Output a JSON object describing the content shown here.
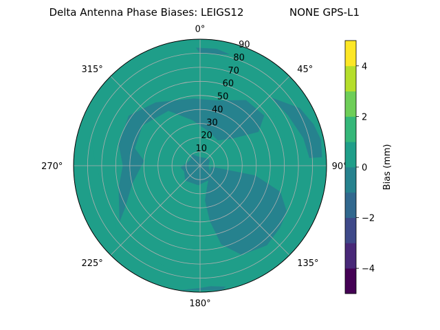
{
  "chart_data": {
    "type": "heatmap",
    "projection": "polar",
    "title": "Delta Antenna Phase Biases: LEIGS12",
    "title_right": "NONE GPS-L1",
    "angle_ticks": [
      {
        "deg": 0,
        "label": "0°"
      },
      {
        "deg": 45,
        "label": "45°"
      },
      {
        "deg": 90,
        "label": "90°"
      },
      {
        "deg": 135,
        "label": "135°"
      },
      {
        "deg": 180,
        "label": "180°"
      },
      {
        "deg": 225,
        "label": "225°"
      },
      {
        "deg": 270,
        "label": "270°"
      },
      {
        "deg": 315,
        "label": "315°"
      }
    ],
    "radial_ticks": [
      10,
      20,
      30,
      40,
      50,
      60,
      70,
      80,
      90
    ],
    "radial_range": [
      0,
      90
    ],
    "grid": true,
    "colorbar": {
      "label": "Bias (mm)",
      "range": [
        -5,
        5
      ],
      "levels": [
        -5,
        -4,
        -3,
        -2,
        -1,
        0,
        1,
        2,
        3,
        4,
        5
      ],
      "ticks": [
        -4,
        -2,
        0,
        2,
        4
      ],
      "tick_labels": [
        "−4",
        "−2",
        "0",
        "2",
        "4"
      ],
      "colors": [
        "#440154",
        "#482878",
        "#3e4989",
        "#31688e",
        "#26828e",
        "#1f9e89",
        "#35b779",
        "#6ece58",
        "#b5de2b",
        "#fde725"
      ]
    },
    "field_colors": {
      "low": "#26828e",
      "high": "#1f9e89"
    },
    "regions": [
      {
        "level": "high",
        "points": [
          [
            20,
            72
          ],
          [
            40,
            69
          ],
          [
            70,
            64
          ],
          [
            100,
            56
          ],
          [
            120,
            55
          ],
          [
            145,
            62
          ],
          [
            160,
            68
          ],
          [
            175,
            74
          ],
          [
            195,
            78
          ],
          [
            230,
            76
          ],
          [
            270,
            74
          ],
          [
            280,
            78
          ],
          [
            300,
            80
          ],
          [
            330,
            84
          ],
          [
            360,
            78
          ],
          [
            20,
            72
          ]
        ]
      },
      {
        "level": "low",
        "points": [
          [
            -85,
            40
          ],
          [
            -75,
            48
          ],
          [
            -55,
            50
          ],
          [
            -30,
            45
          ],
          [
            -10,
            33
          ],
          [
            15,
            25
          ],
          [
            35,
            22
          ],
          [
            50,
            30
          ],
          [
            60,
            48
          ],
          [
            52,
            58
          ],
          [
            35,
            57
          ],
          [
            15,
            48
          ],
          [
            -5,
            48
          ],
          [
            -35,
            55
          ],
          [
            -55,
            62
          ],
          [
            -75,
            60
          ],
          [
            -90,
            55
          ],
          [
            -105,
            60
          ],
          [
            -125,
            70
          ],
          [
            -120,
            62
          ],
          [
            -105,
            50
          ],
          [
            -85,
            40
          ]
        ]
      },
      {
        "level": "low",
        "points": [
          [
            60,
            8
          ],
          [
            90,
            6
          ],
          [
            120,
            8
          ],
          [
            150,
            12
          ],
          [
            185,
            14
          ],
          [
            225,
            15
          ],
          [
            250,
            12
          ],
          [
            265,
            14
          ],
          [
            280,
            10
          ],
          [
            300,
            8
          ],
          [
            325,
            10
          ],
          [
            345,
            7
          ],
          [
            10,
            6
          ],
          [
            40,
            7
          ],
          [
            60,
            8
          ]
        ]
      },
      {
        "level": "low",
        "points": [
          [
            95,
            8
          ],
          [
            100,
            40
          ],
          [
            108,
            60
          ],
          [
            118,
            70
          ],
          [
            128,
            72
          ],
          [
            140,
            74
          ],
          [
            155,
            70
          ],
          [
            165,
            58
          ],
          [
            170,
            40
          ],
          [
            172,
            25
          ],
          [
            160,
            15
          ],
          [
            140,
            10
          ],
          [
            115,
            8
          ],
          [
            95,
            8
          ]
        ]
      },
      {
        "level": "low",
        "points": [
          [
            -2,
            84
          ],
          [
            8,
            84
          ],
          [
            15,
            82
          ],
          [
            8,
            80
          ],
          [
            0,
            80
          ],
          [
            -2,
            84
          ]
        ]
      },
      {
        "level": "low",
        "points": [
          [
            46,
            70
          ],
          [
            60,
            82
          ],
          [
            70,
            86
          ],
          [
            78,
            88
          ],
          [
            86,
            87
          ],
          [
            86,
            78
          ],
          [
            75,
            76
          ],
          [
            60,
            72
          ],
          [
            46,
            70
          ]
        ]
      },
      {
        "level": "low",
        "points": [
          [
            168,
            88
          ],
          [
            175,
            86
          ],
          [
            180,
            87
          ],
          [
            190,
            90
          ],
          [
            170,
            90
          ],
          [
            168,
            88
          ]
        ]
      }
    ]
  }
}
